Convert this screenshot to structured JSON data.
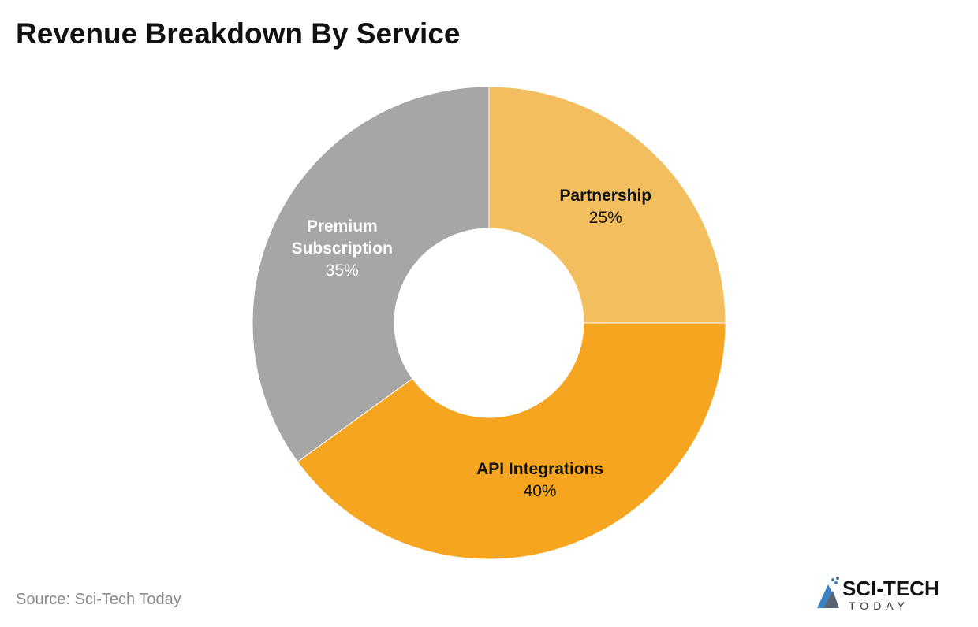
{
  "chart_data": {
    "type": "pie",
    "variant": "donut",
    "title": "Revenue Breakdown By Service",
    "start_angle": "top, clockwise",
    "slices": [
      {
        "label": "Partnership",
        "value": 25,
        "display": "25%",
        "color": "#F2BE5E",
        "label_color": "#111111"
      },
      {
        "label": "API Integrations",
        "value": 40,
        "display": "40%",
        "color": "#F5A51F",
        "label_color": "#111111"
      },
      {
        "label": "Premium Subscription",
        "value": 35,
        "display": "35%",
        "color": "#A6A6A6",
        "label_color": "#FFFFFF"
      }
    ]
  },
  "footer": {
    "source": "Source: Sci-Tech Today",
    "logo_text": "SCI-TECH TODAY"
  }
}
